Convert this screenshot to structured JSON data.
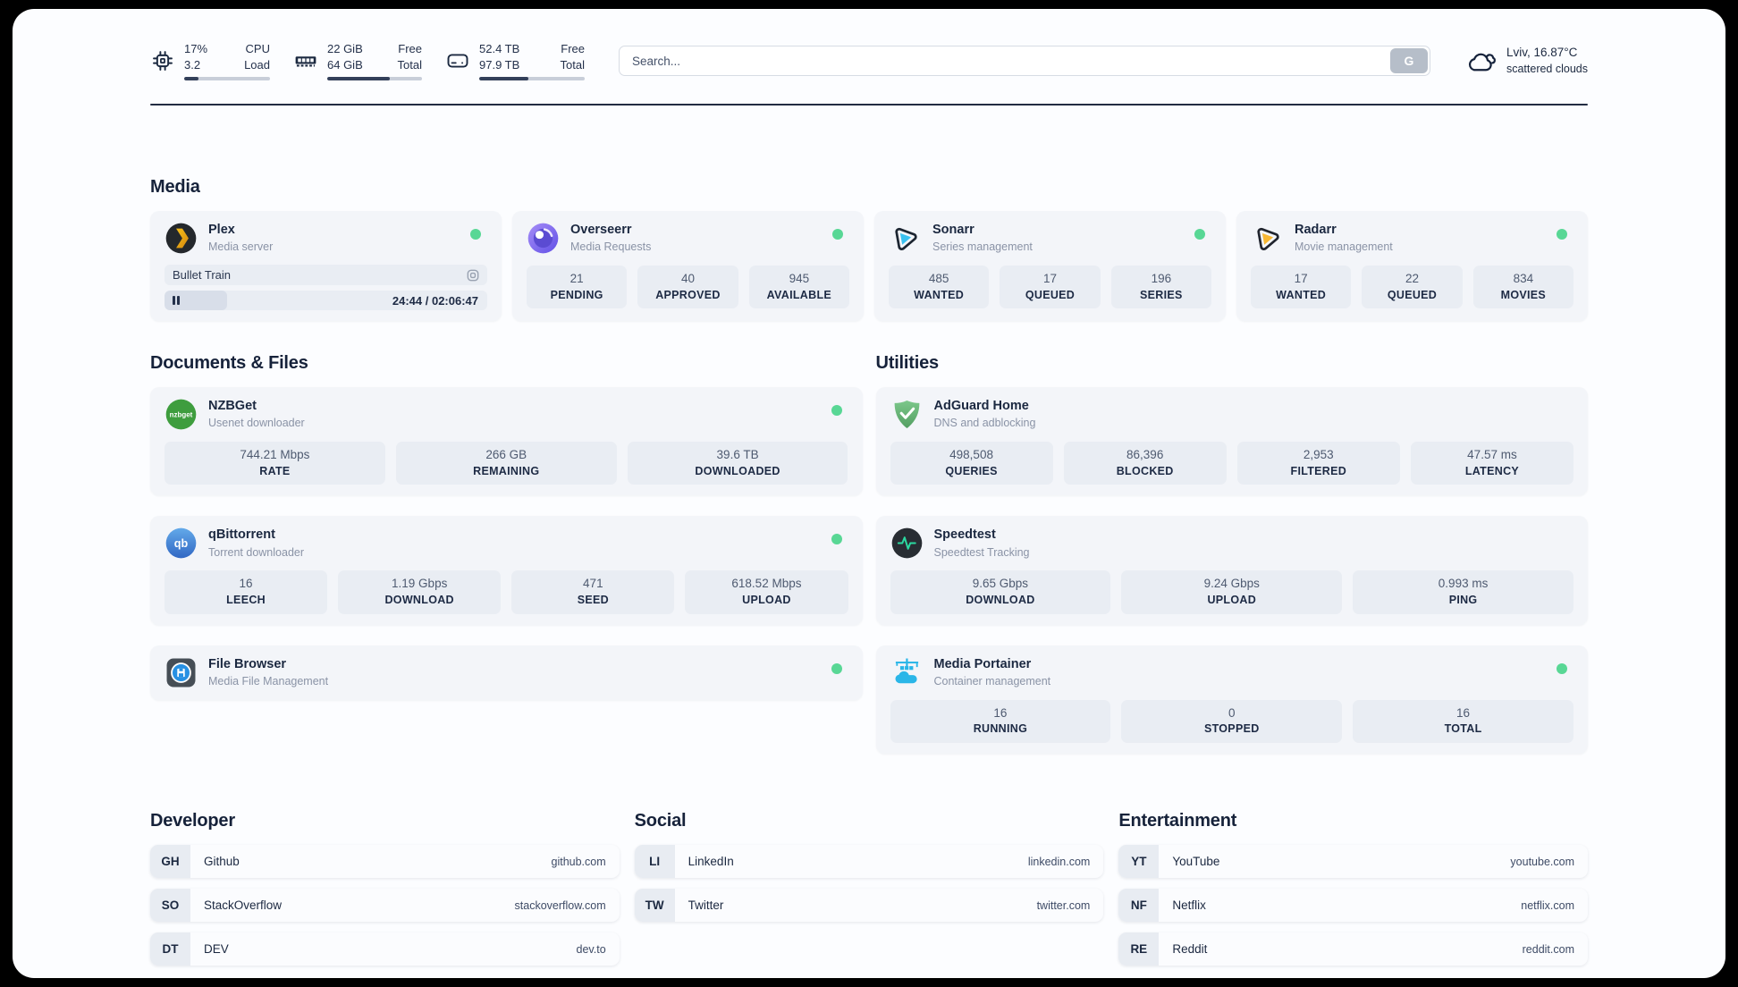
{
  "header": {
    "cpu": {
      "icon": "cpu-chip-icon",
      "value1": "17%",
      "value2": "3.2",
      "label1": "CPU",
      "label2": "Load",
      "progress_pct": 17
    },
    "memory": {
      "icon": "memory-icon",
      "value1": "22 GiB",
      "value2": "64 GiB",
      "label1": "Free",
      "label2": "Total",
      "progress_pct": 66
    },
    "disk": {
      "icon": "hard-drive-icon",
      "value1": "52.4 TB",
      "value2": "97.9 TB",
      "label1": "Free",
      "label2": "Total",
      "progress_pct": 47
    },
    "search": {
      "placeholder": "Search...",
      "button_label": "G"
    },
    "weather": {
      "icon": "cloud-icon",
      "summary": "Lviv, 16.87°C",
      "condition": "scattered clouds"
    }
  },
  "media": {
    "title": "Media",
    "plex": {
      "name": "Plex",
      "subtitle": "Media server",
      "icon": "plex-icon",
      "online": true,
      "now_playing": "Bullet Train",
      "time": "24:44 / 02:06:47",
      "progress_pct": 19.5
    },
    "overseerr": {
      "name": "Overseerr",
      "subtitle": "Media Requests",
      "icon": "overseerr-icon",
      "online": true,
      "stats": [
        {
          "value": "21",
          "label": "PENDING"
        },
        {
          "value": "40",
          "label": "APPROVED"
        },
        {
          "value": "945",
          "label": "AVAILABLE"
        }
      ]
    },
    "sonarr": {
      "name": "Sonarr",
      "subtitle": "Series management",
      "icon": "sonarr-icon",
      "online": true,
      "stats": [
        {
          "value": "485",
          "label": "WANTED"
        },
        {
          "value": "17",
          "label": "QUEUED"
        },
        {
          "value": "196",
          "label": "SERIES"
        }
      ]
    },
    "radarr": {
      "name": "Radarr",
      "subtitle": "Movie management",
      "icon": "radarr-icon",
      "online": true,
      "stats": [
        {
          "value": "17",
          "label": "WANTED"
        },
        {
          "value": "22",
          "label": "QUEUED"
        },
        {
          "value": "834",
          "label": "MOVIES"
        }
      ]
    }
  },
  "documents": {
    "title": "Documents & Files",
    "nzbget": {
      "name": "NZBGet",
      "subtitle": "Usenet downloader",
      "icon": "nzbget-icon",
      "online": true,
      "stats": [
        {
          "value": "744.21 Mbps",
          "label": "RATE"
        },
        {
          "value": "266 GB",
          "label": "REMAINING"
        },
        {
          "value": "39.6 TB",
          "label": "DOWNLOADED"
        }
      ]
    },
    "qbittorrent": {
      "name": "qBittorrent",
      "subtitle": "Torrent downloader",
      "icon": "qbittorrent-icon",
      "online": true,
      "stats": [
        {
          "value": "16",
          "label": "LEECH"
        },
        {
          "value": "1.19 Gbps",
          "label": "DOWNLOAD"
        },
        {
          "value": "471",
          "label": "SEED"
        },
        {
          "value": "618.52 Mbps",
          "label": "UPLOAD"
        }
      ]
    },
    "filebrowser": {
      "name": "File Browser",
      "subtitle": "Media File Management",
      "icon": "filebrowser-icon",
      "online": true
    }
  },
  "utilities": {
    "title": "Utilities",
    "adguard": {
      "name": "AdGuard Home",
      "subtitle": "DNS and adblocking",
      "icon": "adguard-shield-icon",
      "stats": [
        {
          "value": "498,508",
          "label": "QUERIES"
        },
        {
          "value": "86,396",
          "label": "BLOCKED"
        },
        {
          "value": "2,953",
          "label": "FILTERED"
        },
        {
          "value": "47.57 ms",
          "label": "LATENCY"
        }
      ]
    },
    "speedtest": {
      "name": "Speedtest",
      "subtitle": "Speedtest Tracking",
      "icon": "speedtest-pulse-icon",
      "stats": [
        {
          "value": "9.65 Gbps",
          "label": "DOWNLOAD"
        },
        {
          "value": "9.24 Gbps",
          "label": "UPLOAD"
        },
        {
          "value": "0.993 ms",
          "label": "PING"
        }
      ]
    },
    "portainer": {
      "name": "Media Portainer",
      "subtitle": "Container management",
      "icon": "portainer-icon",
      "online": true,
      "stats": [
        {
          "value": "16",
          "label": "RUNNING"
        },
        {
          "value": "0",
          "label": "STOPPED"
        },
        {
          "value": "16",
          "label": "TOTAL"
        }
      ]
    }
  },
  "bookmarks": {
    "developer": {
      "title": "Developer",
      "items": [
        {
          "abbr": "GH",
          "name": "Github",
          "url": "github.com"
        },
        {
          "abbr": "SO",
          "name": "StackOverflow",
          "url": "stackoverflow.com"
        },
        {
          "abbr": "DT",
          "name": "DEV",
          "url": "dev.to"
        }
      ]
    },
    "social": {
      "title": "Social",
      "items": [
        {
          "abbr": "LI",
          "name": "LinkedIn",
          "url": "linkedin.com"
        },
        {
          "abbr": "TW",
          "name": "Twitter",
          "url": "twitter.com"
        }
      ]
    },
    "entertainment": {
      "title": "Entertainment",
      "items": [
        {
          "abbr": "YT",
          "name": "YouTube",
          "url": "youtube.com"
        },
        {
          "abbr": "NF",
          "name": "Netflix",
          "url": "netflix.com"
        },
        {
          "abbr": "RE",
          "name": "Reddit",
          "url": "reddit.com"
        }
      ]
    }
  },
  "colors": {
    "status_online": "#58d795",
    "text_dark": "#1b2840",
    "progress_fill": "#33405a",
    "card_bg": "#f3f5f9"
  }
}
